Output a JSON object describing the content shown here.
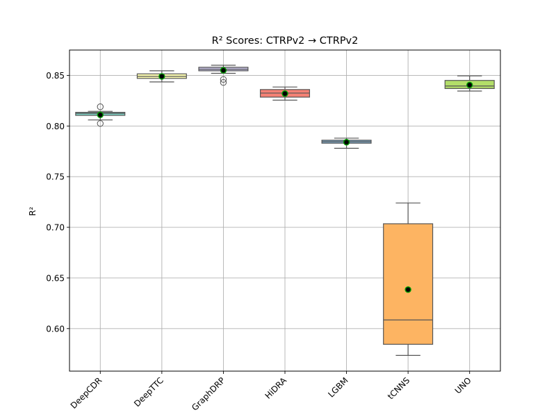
{
  "chart_data": {
    "type": "box",
    "title": "R² Scores: CTRPv2 → CTRPv2",
    "xlabel": "",
    "ylabel": "R²",
    "ylim": [
      0.558,
      0.875
    ],
    "yticks": [
      0.6,
      0.65,
      0.7,
      0.75,
      0.8,
      0.85
    ],
    "ytick_labels": [
      "0.60",
      "0.65",
      "0.70",
      "0.75",
      "0.80",
      "0.85"
    ],
    "grid": true,
    "categories": [
      "DeepCDR",
      "DeepTTC",
      "GraphDRP",
      "HiDRA",
      "LGBM",
      "tCNNS",
      "UNO"
    ],
    "boxes": [
      {
        "name": "DeepCDR",
        "color": "#7fd3c6",
        "whislo": 0.806,
        "q1": 0.8105,
        "med": 0.8125,
        "q3": 0.8135,
        "whishi": 0.8145,
        "mean": 0.811,
        "fliers": [
          0.819,
          0.8025
        ]
      },
      {
        "name": "DeepTTC",
        "color": "#fdfdb3",
        "whislo": 0.8435,
        "q1": 0.847,
        "med": 0.849,
        "q3": 0.8515,
        "whishi": 0.8545,
        "mean": 0.849,
        "fliers": []
      },
      {
        "name": "GraphDRP",
        "color": "#bfbadb",
        "whislo": 0.852,
        "q1": 0.8545,
        "med": 0.856,
        "q3": 0.858,
        "whishi": 0.86,
        "mean": 0.855,
        "fliers": [
          0.846,
          0.843
        ]
      },
      {
        "name": "HiDRA",
        "color": "#f48175",
        "whislo": 0.8255,
        "q1": 0.8285,
        "med": 0.8325,
        "q3": 0.836,
        "whishi": 0.8385,
        "mean": 0.832,
        "fliers": []
      },
      {
        "name": "LGBM",
        "color": "#82b1d3",
        "whislo": 0.778,
        "q1": 0.783,
        "med": 0.7845,
        "q3": 0.786,
        "whishi": 0.788,
        "mean": 0.784,
        "fliers": []
      },
      {
        "name": "tCNNS",
        "color": "#fdb462",
        "whislo": 0.5735,
        "q1": 0.5845,
        "med": 0.6085,
        "q3": 0.7035,
        "whishi": 0.724,
        "mean": 0.6385,
        "fliers": []
      },
      {
        "name": "UNO",
        "color": "#b3de69",
        "whislo": 0.8345,
        "q1": 0.837,
        "med": 0.8395,
        "q3": 0.845,
        "whishi": 0.8495,
        "mean": 0.8405,
        "fliers": []
      }
    ]
  }
}
